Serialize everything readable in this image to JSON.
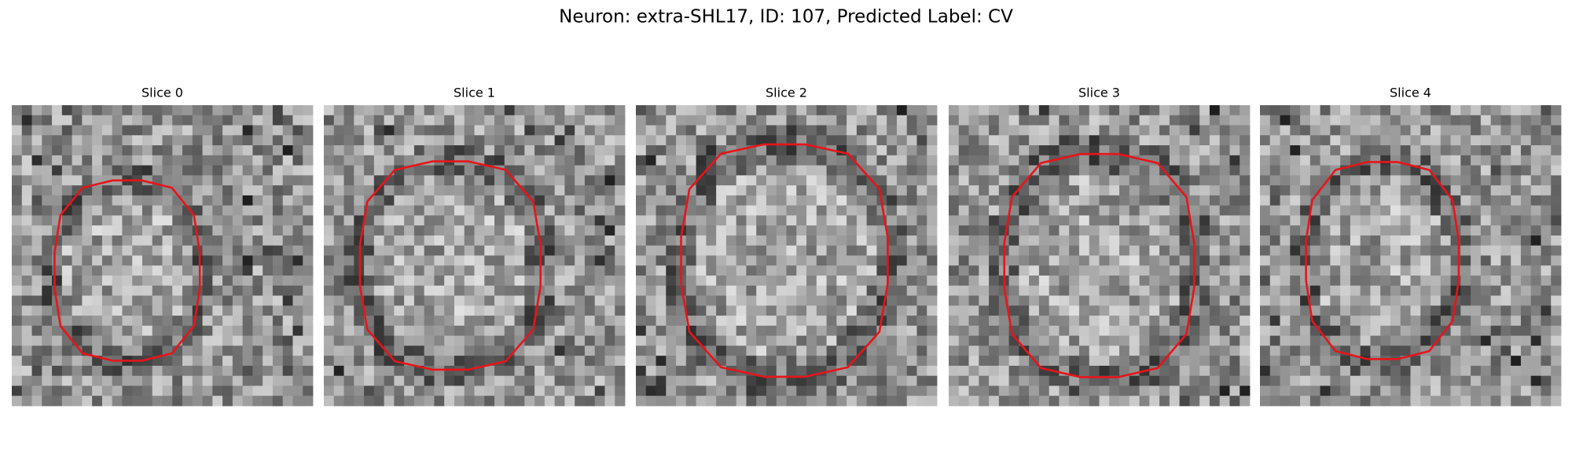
{
  "header": {
    "title": "Neuron: extra-SHL17, ID: 107, Predicted Label: CV"
  },
  "panels": [
    {
      "title": "Slice 0"
    },
    {
      "title": "Slice 1"
    },
    {
      "title": "Slice 2"
    },
    {
      "title": "Slice 3"
    },
    {
      "title": "Slice 4"
    }
  ]
}
